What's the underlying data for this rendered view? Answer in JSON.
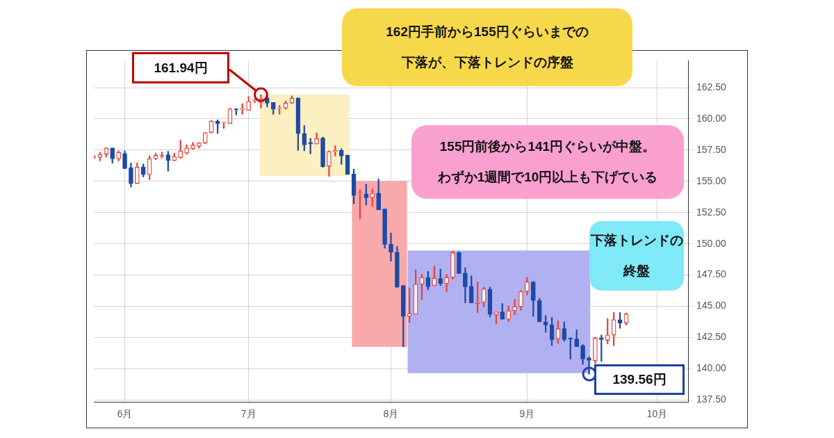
{
  "chart_data": {
    "type": "candlestick",
    "categories": [
      null,
      null,
      null,
      null,
      null,
      "6月",
      null,
      null,
      null,
      null,
      null,
      null,
      null,
      null,
      null,
      null,
      null,
      null,
      null,
      null,
      null,
      null,
      null,
      null,
      null,
      "7月",
      null,
      null,
      null,
      null,
      null,
      null,
      null,
      null,
      null,
      null,
      null,
      null,
      null,
      null,
      null,
      null,
      null,
      null,
      null,
      null,
      null,
      null,
      "8月",
      null,
      null,
      null,
      null,
      null,
      null,
      null,
      null,
      null,
      null,
      null,
      null,
      null,
      null,
      null,
      null,
      null,
      null,
      null,
      null,
      null,
      "9月",
      null,
      null,
      null,
      null,
      null,
      null,
      null,
      null,
      null,
      null,
      null,
      null,
      null,
      null,
      null,
      null,
      null,
      null,
      null,
      null,
      "10月",
      null,
      null,
      null,
      null,
      null
    ],
    "ohlc": [
      [
        156.9,
        157.1,
        156.8,
        157.0
      ],
      [
        156.93,
        157.34,
        156.63,
        157.16
      ],
      [
        157.17,
        157.7,
        156.93,
        157.67
      ],
      [
        157.67,
        157.67,
        156.45,
        156.8
      ],
      [
        156.8,
        157.44,
        156.63,
        157.31
      ],
      [
        157.22,
        157.44,
        155.99,
        156.03
      ],
      [
        156.09,
        156.48,
        154.55,
        154.82
      ],
      [
        154.82,
        156.48,
        154.82,
        156.14
      ],
      [
        156.14,
        156.39,
        155.36,
        155.54
      ],
      [
        155.54,
        157.04,
        155.13,
        156.81
      ],
      [
        156.81,
        157.26,
        156.72,
        157.08
      ],
      [
        157.0,
        157.34,
        156.86,
        157.1
      ],
      [
        157.13,
        157.4,
        155.82,
        156.68
      ],
      [
        156.66,
        157.26,
        156.63,
        156.99
      ],
      [
        156.9,
        158.3,
        156.84,
        157.44
      ],
      [
        157.26,
        157.94,
        157.17,
        157.67
      ],
      [
        157.62,
        158.12,
        157.56,
        157.9
      ],
      [
        157.8,
        158.12,
        157.65,
        158.07
      ],
      [
        158.07,
        158.91,
        158.01,
        158.91
      ],
      [
        158.91,
        159.87,
        158.88,
        159.81
      ],
      [
        159.81,
        159.92,
        158.84,
        159.63
      ],
      [
        159.69,
        159.72,
        159.24,
        159.72
      ],
      [
        159.63,
        160.86,
        159.63,
        160.8
      ],
      [
        160.8,
        160.8,
        160.32,
        160.72
      ],
      [
        160.77,
        161.22,
        160.36,
        160.86
      ],
      [
        160.68,
        161.8,
        160.68,
        161.4
      ],
      [
        161.43,
        161.6,
        161.3,
        161.47
      ],
      [
        161.31,
        161.94,
        160.86,
        161.62
      ],
      [
        161.67,
        161.85,
        160.95,
        161.26
      ],
      [
        161.31,
        161.31,
        160.36,
        160.77
      ],
      [
        160.83,
        161.08,
        160.36,
        160.9
      ],
      [
        160.86,
        161.44,
        160.77,
        161.26
      ],
      [
        161.26,
        161.85,
        161.22,
        161.67
      ],
      [
        161.67,
        161.67,
        157.47,
        158.82
      ],
      [
        158.82,
        159.47,
        157.44,
        157.92
      ],
      [
        158.1,
        158.43,
        157.2,
        157.98
      ],
      [
        157.98,
        158.88,
        157.98,
        158.43
      ],
      [
        158.46,
        158.55,
        156.12,
        156.18
      ],
      [
        156.21,
        157.44,
        155.4,
        157.38
      ],
      [
        157.4,
        157.85,
        157.02,
        157.47
      ],
      [
        157.47,
        157.62,
        156.36,
        157.02
      ],
      [
        157.08,
        157.11,
        155.55,
        155.55
      ],
      [
        155.58,
        155.99,
        153.2,
        153.87
      ],
      [
        153.98,
        154.32,
        151.98,
        154.07
      ],
      [
        153.98,
        154.77,
        153.11,
        153.69
      ],
      [
        153.69,
        154.38,
        153.0,
        154.05
      ],
      [
        154.05,
        155.19,
        152.72,
        152.72
      ],
      [
        152.79,
        152.79,
        149.65,
        149.96
      ],
      [
        149.96,
        150.86,
        148.61,
        149.33
      ],
      [
        149.33,
        149.78,
        146.5,
        146.54
      ],
      [
        146.66,
        146.66,
        141.76,
        144.19
      ],
      [
        144.19,
        146.45,
        143.71,
        144.41
      ],
      [
        144.37,
        147.92,
        144.37,
        146.77
      ],
      [
        146.77,
        147.56,
        145.51,
        147.31
      ],
      [
        147.31,
        147.8,
        146.32,
        146.57
      ],
      [
        146.66,
        148.21,
        146.66,
        147.26
      ],
      [
        147.22,
        147.98,
        146.66,
        146.81
      ],
      [
        146.81,
        147.56,
        146.18,
        147.31
      ],
      [
        147.31,
        149.42,
        147.17,
        149.29
      ],
      [
        149.29,
        149.36,
        147.62,
        147.62
      ],
      [
        147.65,
        148.07,
        145.27,
        146.57
      ],
      [
        146.59,
        147.44,
        145.27,
        145.27
      ],
      [
        145.22,
        146.95,
        144.5,
        145.31
      ],
      [
        145.31,
        146.54,
        144.95,
        146.39
      ],
      [
        146.36,
        146.54,
        144.14,
        144.37
      ],
      [
        144.32,
        144.55,
        143.56,
        144.55
      ],
      [
        144.55,
        145.22,
        143.96,
        143.96
      ],
      [
        143.96,
        145.04,
        143.78,
        144.64
      ],
      [
        144.64,
        145.54,
        144.32,
        144.97
      ],
      [
        144.97,
        146.27,
        144.68,
        146.18
      ],
      [
        146.18,
        147.31,
        145.91,
        146.95
      ],
      [
        146.95,
        146.99,
        144.19,
        145.46
      ],
      [
        145.46,
        145.64,
        143.75,
        143.75
      ],
      [
        143.75,
        144.25,
        142.93,
        143.51
      ],
      [
        143.51,
        144.11,
        141.85,
        142.34
      ],
      [
        142.39,
        143.84,
        142.03,
        143.21
      ],
      [
        143.21,
        143.75,
        142.21,
        142.34
      ],
      [
        142.47,
        142.48,
        140.77,
        142.38
      ],
      [
        142.38,
        143.12,
        141.76,
        141.76
      ],
      [
        141.85,
        141.94,
        140.36,
        140.77
      ],
      [
        140.86,
        140.95,
        139.56,
        140.68
      ],
      [
        140.65,
        142.52,
        140.41,
        142.45
      ],
      [
        142.45,
        142.7,
        140.59,
        142.34
      ],
      [
        142.27,
        144.02,
        141.98,
        142.7
      ],
      [
        142.7,
        144.5,
        141.85,
        143.93
      ],
      [
        143.93,
        144.5,
        143.24,
        143.66
      ],
      [
        143.66,
        144.47,
        143.48,
        144.38
      ],
      null,
      null,
      null,
      null,
      null,
      null,
      null,
      null,
      null,
      null
    ],
    "colors": [
      "#e8413a",
      "#e8413a",
      "#e8413a",
      "#1d4aa6",
      "#e8413a",
      "#1d4aa6",
      "#1d4aa6",
      "#e8413a",
      "#1d4aa6",
      "#e8413a",
      "#e8413a",
      "#e8413a",
      "#1d4aa6",
      "#e8413a",
      "#e8413a",
      "#e8413a",
      "#e8413a",
      "#e8413a",
      "#e8413a",
      "#e8413a",
      "#1d4aa6",
      "#e8413a",
      "#e8413a",
      "#1d4aa6",
      "#e8413a",
      "#e8413a",
      "#e8413a",
      "#e8413a",
      "#1d4aa6",
      "#1d4aa6",
      "#e8413a",
      "#e8413a",
      "#e8413a",
      "#1d4aa6",
      "#1d4aa6",
      "#1d4aa6",
      "#e8413a",
      "#1d4aa6",
      "#e8413a",
      "#e8413a",
      "#1d4aa6",
      "#1d4aa6",
      "#1d4aa6",
      "#e8413a",
      "#1d4aa6",
      "#e8413a",
      "#1d4aa6",
      "#1d4aa6",
      "#1d4aa6",
      "#1d4aa6",
      "#1d4aa6",
      "#e8413a",
      "#e8413a",
      "#e8413a",
      "#1d4aa6",
      "#e8413a",
      "#1d4aa6",
      "#e8413a",
      "#e8413a",
      "#1d4aa6",
      "#1d4aa6",
      "#1d4aa6",
      "#e8413a",
      "#e8413a",
      "#1d4aa6",
      "#e8413a",
      "#1d4aa6",
      "#e8413a",
      "#e8413a",
      "#e8413a",
      "#e8413a",
      "#1d4aa6",
      "#1d4aa6",
      "#1d4aa6",
      "#1d4aa6",
      "#e8413a",
      "#1d4aa6",
      "#1d4aa6",
      "#1d4aa6",
      "#1d4aa6",
      "#1d4aa6",
      "#e8413a",
      "#1d4aa6",
      "#e8413a",
      "#e8413a",
      "#1d4aa6",
      "#e8413a",
      null,
      null,
      null,
      null,
      null,
      null,
      null,
      null,
      null,
      null
    ],
    "ylim": [
      137.35,
      164.65
    ],
    "yticks": [
      {
        "value": 137.5,
        "label": "137.50"
      },
      {
        "value": 140,
        "label": "140.00"
      },
      {
        "value": 142.5,
        "label": "142.50"
      },
      {
        "value": 145,
        "label": "145.00"
      },
      {
        "value": 147.5,
        "label": "147.50"
      },
      {
        "value": 150,
        "label": "150.00"
      },
      {
        "value": 152.5,
        "label": "152.50"
      },
      {
        "value": 155,
        "label": "155.00"
      },
      {
        "value": 157.5,
        "label": "157.50"
      },
      {
        "value": 160,
        "label": "160.00"
      },
      {
        "value": 162.5,
        "label": "162.50"
      }
    ],
    "grid": true,
    "bands": [
      {
        "axis": "y",
        "from": 155.42,
        "to": 161.96,
        "color": "#fcf0c3"
      },
      {
        "axis": "y",
        "from": 141.74,
        "to": 155.04,
        "color": "#f8a9aa"
      },
      {
        "axis": "y",
        "from": 139.64,
        "to": 149.47,
        "color": "#b1b1f1"
      }
    ],
    "annotations": [
      "161.94円",
      "139.56円",
      "162円手前から155円ぐらいまでの下落が、下落トレンドの序盤",
      "155円前後から141円ぐらいが中盤。わずか1週間で10円以上も下げている",
      "下落トレンドの終盤"
    ]
  }
}
